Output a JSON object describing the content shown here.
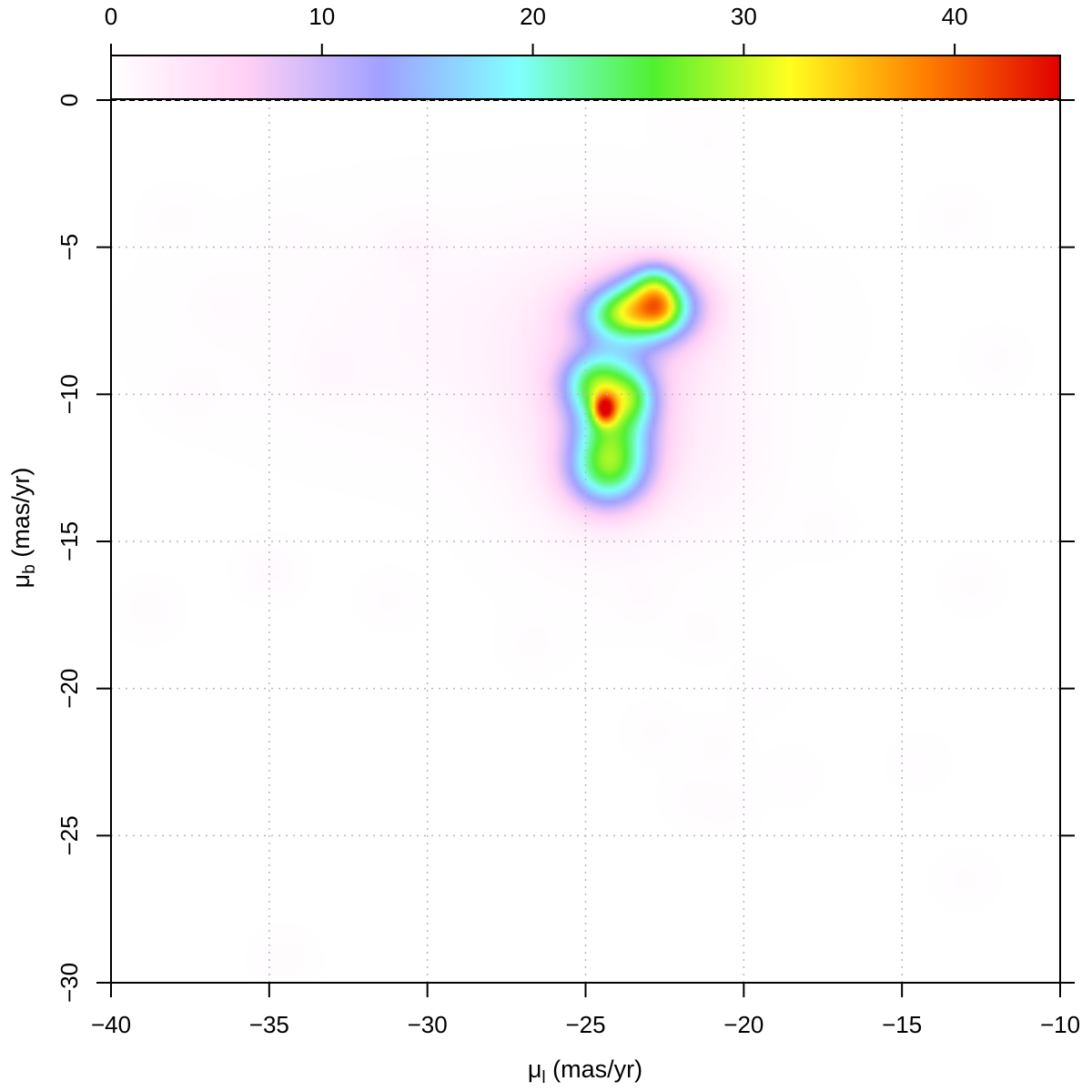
{
  "chart_data": {
    "type": "heatmap",
    "xlabel": "μ",
    "xlabel_sub": "l",
    "xlabel_unit": " (mas/yr)",
    "ylabel": "μ",
    "ylabel_sub": "b",
    "ylabel_unit": " (mas/yr)",
    "xlim": [
      -40,
      -10
    ],
    "ylim": [
      -30,
      0
    ],
    "x_ticks": [
      "−40",
      "−35",
      "−30",
      "−25",
      "−20",
      "−15",
      "−10"
    ],
    "y_ticks": [
      "0",
      "−5",
      "−10",
      "−15",
      "−20",
      "−25",
      "−30"
    ],
    "colorbar": {
      "range": [
        0,
        45
      ],
      "ticks": [
        "0",
        "10",
        "20",
        "30",
        "40"
      ],
      "colors": [
        "#ffffff",
        "#ffd0f5",
        "#a0a0ff",
        "#80ffff",
        "#50f030",
        "#ffff20",
        "#ff8000",
        "#e00000"
      ]
    },
    "grid": true,
    "reference_line": {
      "y": 0,
      "style": "dashed"
    },
    "blobs": [
      {
        "x": -24.4,
        "y": -10.5,
        "sx": 0.25,
        "sy": 0.35,
        "peak": 20
      },
      {
        "x": -24.1,
        "y": -10.6,
        "sx": 0.9,
        "sy": 1.3,
        "peak": 18
      },
      {
        "x": -24.3,
        "y": -12.6,
        "sx": 0.9,
        "sy": 0.9,
        "peak": 19
      },
      {
        "x": -24.8,
        "y": -9.6,
        "sx": 0.7,
        "sy": 0.7,
        "peak": 12
      },
      {
        "x": -23.5,
        "y": -10.1,
        "sx": 0.5,
        "sy": 0.6,
        "peak": 8
      },
      {
        "x": -22.6,
        "y": -7.1,
        "sx": 0.45,
        "sy": 0.5,
        "peak": 8
      },
      {
        "x": -22.9,
        "y": -7.0,
        "sx": 1.0,
        "sy": 0.8,
        "peak": 22
      },
      {
        "x": -22.8,
        "y": -6.2,
        "sx": 0.5,
        "sy": 0.5,
        "peak": 9
      },
      {
        "x": -24.0,
        "y": -7.3,
        "sx": 0.9,
        "sy": 0.6,
        "peak": 12
      },
      {
        "x": -24.5,
        "y": -10.5,
        "sx": 2.0,
        "sy": 2.8,
        "peak": 4
      },
      {
        "x": -23.2,
        "y": -7.5,
        "sx": 1.8,
        "sy": 1.5,
        "peak": 3.5
      },
      {
        "x": -28.0,
        "y": -7.8,
        "sx": 5.0,
        "sy": 2.5,
        "peak": 1.2
      },
      {
        "x": -21.0,
        "y": -12.0,
        "sx": 1.5,
        "sy": 2.0,
        "peak": 1.0
      },
      {
        "x": -34.5,
        "y": -29.2,
        "sx": 0.6,
        "sy": 0.6,
        "peak": 0.5
      },
      {
        "x": -35.0,
        "y": -16.0,
        "sx": 0.6,
        "sy": 0.6,
        "peak": 0.7
      },
      {
        "x": -37.5,
        "y": -10.0,
        "sx": 0.6,
        "sy": 0.6,
        "peak": 0.5
      },
      {
        "x": -38.0,
        "y": -4.0,
        "sx": 0.6,
        "sy": 0.6,
        "peak": 0.4
      },
      {
        "x": -38.8,
        "y": -17.3,
        "sx": 0.6,
        "sy": 0.6,
        "peak": 0.5
      },
      {
        "x": -31.2,
        "y": -17.0,
        "sx": 0.6,
        "sy": 0.6,
        "peak": 0.4
      },
      {
        "x": -26.7,
        "y": -18.5,
        "sx": 0.6,
        "sy": 0.6,
        "peak": 0.4
      },
      {
        "x": -23.2,
        "y": -17.0,
        "sx": 0.6,
        "sy": 0.6,
        "peak": 0.4
      },
      {
        "x": -21.3,
        "y": -18.0,
        "sx": 0.6,
        "sy": 0.6,
        "peak": 0.4
      },
      {
        "x": -22.8,
        "y": -21.5,
        "sx": 0.6,
        "sy": 0.6,
        "peak": 0.4
      },
      {
        "x": -20.8,
        "y": -22.0,
        "sx": 0.6,
        "sy": 0.6,
        "peak": 0.4
      },
      {
        "x": -21.6,
        "y": -23.7,
        "sx": 0.6,
        "sy": 0.6,
        "peak": 0.4
      },
      {
        "x": -20.5,
        "y": -24.0,
        "sx": 0.6,
        "sy": 0.6,
        "peak": 0.4
      },
      {
        "x": -18.5,
        "y": -23.0,
        "sx": 0.6,
        "sy": 0.6,
        "peak": 0.3
      },
      {
        "x": -19.5,
        "y": -20.0,
        "sx": 0.6,
        "sy": 0.6,
        "peak": 0.3
      },
      {
        "x": -17.5,
        "y": -14.5,
        "sx": 0.6,
        "sy": 0.6,
        "peak": 0.4
      },
      {
        "x": -14.5,
        "y": -22.5,
        "sx": 0.6,
        "sy": 0.6,
        "peak": 0.3
      },
      {
        "x": -12.8,
        "y": -16.5,
        "sx": 0.6,
        "sy": 0.6,
        "peak": 0.4
      },
      {
        "x": -13.0,
        "y": -26.5,
        "sx": 0.6,
        "sy": 0.6,
        "peak": 0.4
      },
      {
        "x": -12.0,
        "y": -8.8,
        "sx": 0.6,
        "sy": 0.6,
        "peak": 0.4
      },
      {
        "x": -13.3,
        "y": -4.0,
        "sx": 0.6,
        "sy": 0.6,
        "peak": 0.4
      },
      {
        "x": -21.0,
        "y": -1.5,
        "sx": 0.6,
        "sy": 0.6,
        "peak": 0.3
      },
      {
        "x": -22.0,
        "y": -0.5,
        "sx": 0.6,
        "sy": 0.6,
        "peak": 0.3
      },
      {
        "x": -34.3,
        "y": -4.5,
        "sx": 0.6,
        "sy": 0.6,
        "peak": 0.3
      },
      {
        "x": -36.5,
        "y": -7.0,
        "sx": 0.7,
        "sy": 0.7,
        "peak": 0.4
      },
      {
        "x": -30.5,
        "y": -5.0,
        "sx": 0.7,
        "sy": 0.7,
        "peak": 0.6
      },
      {
        "x": -33.0,
        "y": -9.3,
        "sx": 0.7,
        "sy": 0.7,
        "peak": 0.5
      }
    ]
  }
}
